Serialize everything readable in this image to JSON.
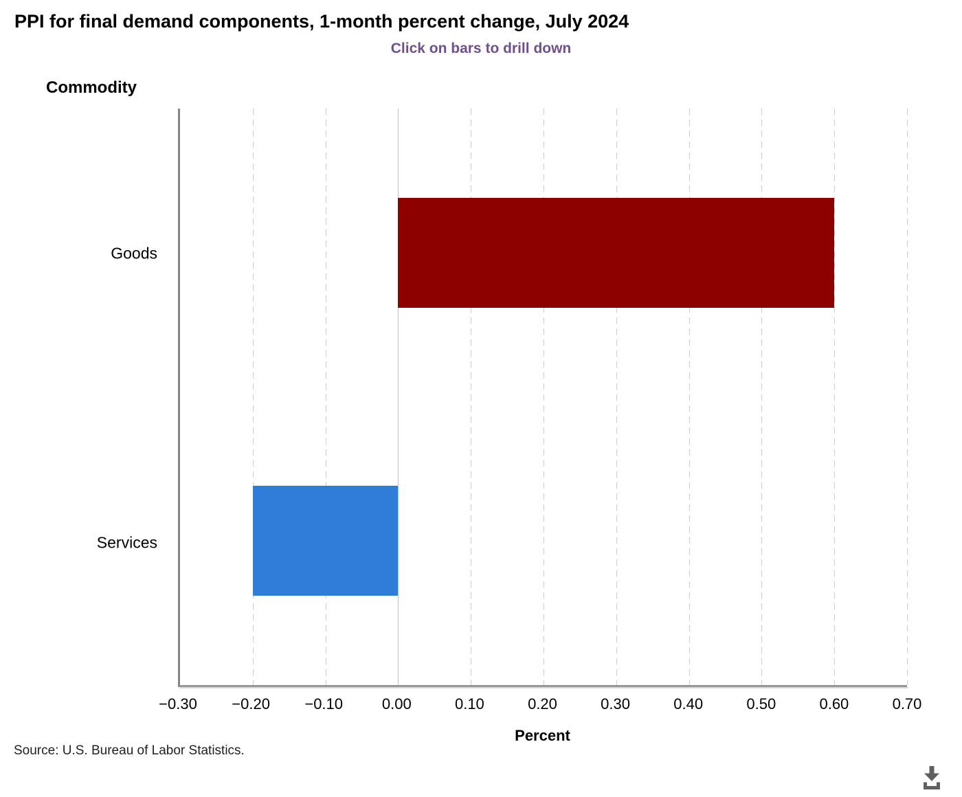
{
  "header": {
    "title": "PPI for final demand components, 1-month percent change, July 2024",
    "subtitle": "Click on bars to drill down"
  },
  "chart_data": {
    "type": "bar",
    "orientation": "horizontal",
    "title": "PPI for final demand components, 1-month percent change, July 2024",
    "subtitle": "Click on bars to drill down",
    "y_axis_title": "Commodity",
    "xlabel": "Percent",
    "categories": [
      "Goods",
      "Services"
    ],
    "values": [
      0.6,
      -0.2
    ],
    "bar_colors": [
      "#8e0101",
      "#2f7dd8"
    ],
    "xlim": [
      -0.3,
      0.7
    ],
    "ticks": [
      -0.3,
      -0.2,
      -0.1,
      0,
      0.1,
      0.2,
      0.3,
      0.4,
      0.5,
      0.6,
      0.7
    ],
    "tick_labels": [
      "−0.30",
      "−0.20",
      "−0.10",
      "0.00",
      "0.10",
      "0.20",
      "0.30",
      "0.40",
      "0.50",
      "0.60",
      "0.70"
    ],
    "grid": "vertical-dashed",
    "zero_line": 0,
    "legend": "none",
    "bar_height_pct": 19.1
  },
  "footer": {
    "source": "Source: U.S. Bureau of Labor Statistics."
  },
  "icons": {
    "download": "download-icon"
  },
  "colors": {
    "subtitle_purple": "#71508a",
    "bar_goods": "#8e0101",
    "bar_services": "#2f7dd8",
    "axis_line": "#8c8c8c",
    "gridline": "#cccccc",
    "zero_line": "#c2c2c2",
    "icon_gray": "#606060",
    "text": "#000000"
  }
}
